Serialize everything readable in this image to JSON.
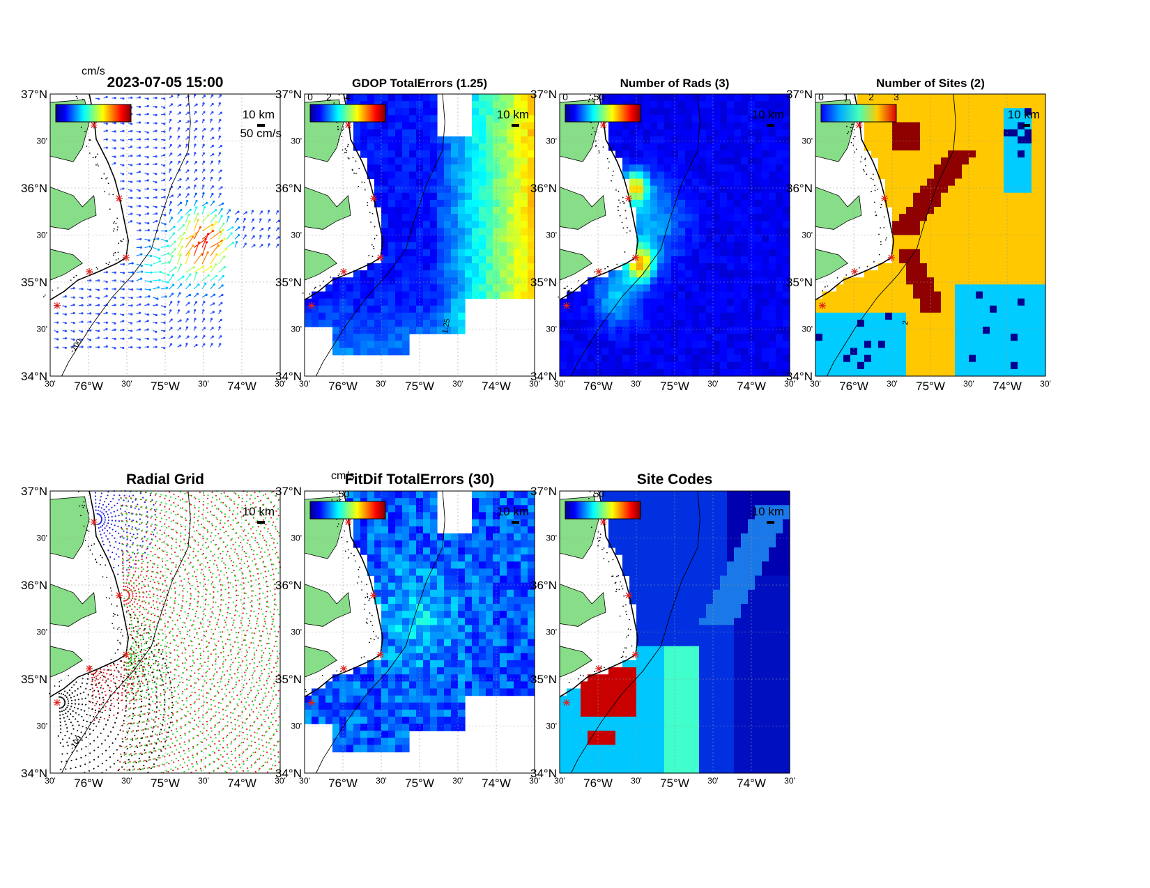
{
  "figure": {
    "timestamp": "2023-07-05 15:00"
  },
  "map": {
    "lat_ticks": [
      "34°N",
      "30'",
      "35°N",
      "30'",
      "36°N",
      "30'",
      "37°N"
    ],
    "lon_ticks": [
      "30'",
      "76°W",
      "30'",
      "75°W",
      "30'",
      "74°W",
      "30'"
    ],
    "scale_label": "10 km",
    "isobath_label": "-100",
    "land_color": "#88dd88",
    "site_marker_color": "#e0201c"
  },
  "chart_data": [
    {
      "id": "currents",
      "type": "vector",
      "title": "2023-07-05 15:00",
      "colorbar_unit": "cm/s",
      "reference_vector_label": "50 cm/s",
      "xlim": [
        -76.5,
        -73.5
      ],
      "ylim": [
        34,
        37
      ]
    },
    {
      "id": "gdop",
      "type": "heatmap",
      "title": "GDOP TotalErrors (1.25)",
      "colorbar_ticks": [
        "0",
        "2",
        "4"
      ],
      "contour_label": "1.25",
      "xlim": [
        -76.5,
        -73.5
      ],
      "ylim": [
        34,
        37
      ]
    },
    {
      "id": "num_rads",
      "type": "heatmap",
      "title": "Number of Rads (3)",
      "colorbar_ticks": [
        "0",
        "50"
      ],
      "xlim": [
        -76.5,
        -73.5
      ],
      "ylim": [
        34,
        37
      ]
    },
    {
      "id": "num_sites",
      "type": "heatmap",
      "title": "Number of Sites (2)",
      "colorbar_ticks": [
        "0",
        "1",
        "2",
        "3"
      ],
      "contour_label": "2",
      "xlim": [
        -76.5,
        -73.5
      ],
      "ylim": [
        34,
        37
      ]
    },
    {
      "id": "radial_grid",
      "type": "scatter",
      "title": "Radial Grid",
      "series_colors": [
        "#2020dd",
        "#e02020",
        "#20dd20",
        "#111111"
      ],
      "xlim": [
        -76.5,
        -73.5
      ],
      "ylim": [
        34,
        37
      ]
    },
    {
      "id": "fitdif",
      "type": "heatmap",
      "title": "FitDif TotalErrors (30)",
      "colorbar_unit": "cm/s",
      "colorbar_ticks": [
        "50"
      ],
      "xlim": [
        -76.5,
        -73.5
      ],
      "ylim": [
        34,
        37
      ]
    },
    {
      "id": "site_codes",
      "type": "heatmap",
      "title": "Site Codes",
      "colorbar_ticks": [
        "50"
      ],
      "xlim": [
        -76.5,
        -73.5
      ],
      "ylim": [
        34,
        37
      ]
    }
  ]
}
